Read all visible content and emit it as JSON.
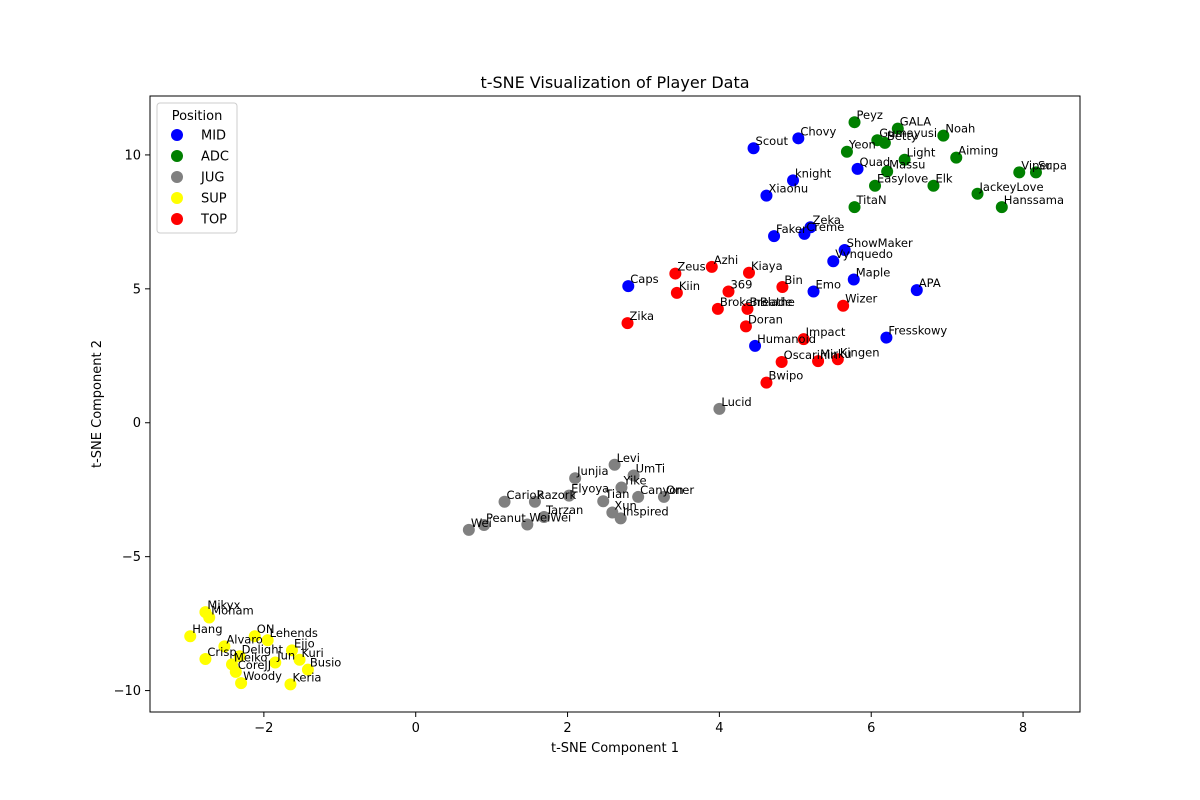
{
  "chart_data": {
    "type": "scatter",
    "title": "t-SNE Visualization of Player Data",
    "xlabel": "t-SNE Component 1",
    "ylabel": "t-SNE Component 2",
    "xlim": [
      -3.5,
      8.75
    ],
    "ylim": [
      -10.8,
      12.2
    ],
    "xticks": [
      -2,
      0,
      2,
      4,
      6,
      8
    ],
    "yticks": [
      -10,
      -5,
      0,
      5,
      10
    ],
    "xtick_labels": [
      "−2",
      "0",
      "2",
      "4",
      "6",
      "8"
    ],
    "ytick_labels": [
      "−10",
      "−5",
      "0",
      "5",
      "10"
    ],
    "grid": false,
    "legend": {
      "title": "Position",
      "placement": "top-left"
    },
    "series": [
      {
        "name": "MID",
        "color": "#0000ff",
        "points": [
          {
            "label": "Scout",
            "x": 4.45,
            "y": 10.25
          },
          {
            "label": "Chovy",
            "x": 5.04,
            "y": 10.62
          },
          {
            "label": "Quad",
            "x": 5.82,
            "y": 9.48
          },
          {
            "label": "knight",
            "x": 4.97,
            "y": 9.05
          },
          {
            "label": "Xiaohu",
            "x": 4.62,
            "y": 8.48
          },
          {
            "label": "Zeka",
            "x": 5.2,
            "y": 7.3
          },
          {
            "label": "Creme",
            "x": 5.12,
            "y": 7.05
          },
          {
            "label": "Faker",
            "x": 4.72,
            "y": 6.97
          },
          {
            "label": "ShowMaker",
            "x": 5.65,
            "y": 6.45
          },
          {
            "label": "Vynquedo",
            "x": 5.5,
            "y": 6.03
          },
          {
            "label": "Maple",
            "x": 5.77,
            "y": 5.35
          },
          {
            "label": "Caps",
            "x": 2.8,
            "y": 5.1
          },
          {
            "label": "Emo",
            "x": 5.24,
            "y": 4.9
          },
          {
            "label": "APA",
            "x": 6.6,
            "y": 4.95
          },
          {
            "label": "Fresskowy",
            "x": 6.2,
            "y": 3.18
          },
          {
            "label": "Humanoid",
            "x": 4.47,
            "y": 2.87
          }
        ]
      },
      {
        "name": "ADC",
        "color": "#008000",
        "points": [
          {
            "label": "Peyz",
            "x": 5.78,
            "y": 11.22
          },
          {
            "label": "GALA",
            "x": 6.35,
            "y": 10.98
          },
          {
            "label": "Gumayusi",
            "x": 6.08,
            "y": 10.55
          },
          {
            "label": "Betty",
            "x": 6.18,
            "y": 10.45
          },
          {
            "label": "Noah",
            "x": 6.95,
            "y": 10.72
          },
          {
            "label": "Yeon",
            "x": 5.68,
            "y": 10.12
          },
          {
            "label": "Light",
            "x": 6.44,
            "y": 9.82
          },
          {
            "label": "Aiming",
            "x": 7.12,
            "y": 9.9
          },
          {
            "label": "Massu",
            "x": 6.21,
            "y": 9.38
          },
          {
            "label": "Viper",
            "x": 7.95,
            "y": 9.35
          },
          {
            "label": "Supa",
            "x": 8.17,
            "y": 9.35
          },
          {
            "label": "Easylove",
            "x": 6.05,
            "y": 8.85
          },
          {
            "label": "Elk",
            "x": 6.82,
            "y": 8.85
          },
          {
            "label": "JackeyLove",
            "x": 7.4,
            "y": 8.55
          },
          {
            "label": "Hanssama",
            "x": 7.72,
            "y": 8.05
          },
          {
            "label": "TitaN",
            "x": 5.78,
            "y": 8.05
          }
        ]
      },
      {
        "name": "JUG",
        "color": "#808080",
        "points": [
          {
            "label": "Lucid",
            "x": 4.0,
            "y": 0.52
          },
          {
            "label": "Levi",
            "x": 2.62,
            "y": -1.57
          },
          {
            "label": "UmTi",
            "x": 2.87,
            "y": -1.97
          },
          {
            "label": "Junjia",
            "x": 2.1,
            "y": -2.07
          },
          {
            "label": "Yike",
            "x": 2.71,
            "y": -2.42
          },
          {
            "label": "Elyoya",
            "x": 2.02,
            "y": -2.72
          },
          {
            "label": "Canyon",
            "x": 2.93,
            "y": -2.77
          },
          {
            "label": "Oner",
            "x": 3.27,
            "y": -2.77
          },
          {
            "label": "Tian",
            "x": 2.47,
            "y": -2.93
          },
          {
            "label": "Cariok",
            "x": 1.17,
            "y": -2.95
          },
          {
            "label": "Razork",
            "x": 1.57,
            "y": -2.95
          },
          {
            "label": "Xun",
            "x": 2.59,
            "y": -3.35
          },
          {
            "label": "Tarzan",
            "x": 1.69,
            "y": -3.52
          },
          {
            "label": "Inspired",
            "x": 2.7,
            "y": -3.57
          },
          {
            "label": "WeiWei",
            "x": 1.47,
            "y": -3.8
          },
          {
            "label": "Peanut",
            "x": 0.9,
            "y": -3.82
          },
          {
            "label": "Wei",
            "x": 0.7,
            "y": -4.0
          }
        ]
      },
      {
        "name": "SUP",
        "color": "#ffff00",
        "points": [
          {
            "label": "Mikyx",
            "x": -2.77,
            "y": -7.07
          },
          {
            "label": "Moham",
            "x": -2.72,
            "y": -7.27
          },
          {
            "label": "Hang",
            "x": -2.97,
            "y": -7.97
          },
          {
            "label": "ON",
            "x": -2.12,
            "y": -7.97
          },
          {
            "label": "Lehends",
            "x": -1.95,
            "y": -8.12
          },
          {
            "label": "Alvaro",
            "x": -2.52,
            "y": -8.35
          },
          {
            "label": "Ejjo",
            "x": -1.63,
            "y": -8.5
          },
          {
            "label": "Delight",
            "x": -2.32,
            "y": -8.72
          },
          {
            "label": "Crisp",
            "x": -2.77,
            "y": -8.82
          },
          {
            "label": "Kuri",
            "x": -1.53,
            "y": -8.85
          },
          {
            "label": "Meiko",
            "x": -2.42,
            "y": -9.02
          },
          {
            "label": "Jun",
            "x": -1.85,
            "y": -8.95
          },
          {
            "label": "CoreJJ",
            "x": -2.37,
            "y": -9.3
          },
          {
            "label": "Busio",
            "x": -1.42,
            "y": -9.22
          },
          {
            "label": "Woody",
            "x": -2.3,
            "y": -9.72
          },
          {
            "label": "Keria",
            "x": -1.65,
            "y": -9.77
          }
        ]
      },
      {
        "name": "TOP",
        "color": "#ff0000",
        "points": [
          {
            "label": "Azhi",
            "x": 3.9,
            "y": 5.82
          },
          {
            "label": "Zeus",
            "x": 3.42,
            "y": 5.57
          },
          {
            "label": "Kiaya",
            "x": 4.39,
            "y": 5.6
          },
          {
            "label": "Bin",
            "x": 4.83,
            "y": 5.07
          },
          {
            "label": "369",
            "x": 4.12,
            "y": 4.9
          },
          {
            "label": "Kiin",
            "x": 3.44,
            "y": 4.85
          },
          {
            "label": "Wizer",
            "x": 5.63,
            "y": 4.37
          },
          {
            "label": "Breathe",
            "x": 4.37,
            "y": 4.25
          },
          {
            "label": "BrokenBlade",
            "x": 3.98,
            "y": 4.25
          },
          {
            "label": "Zika",
            "x": 2.79,
            "y": 3.72
          },
          {
            "label": "Doran",
            "x": 4.35,
            "y": 3.6
          },
          {
            "label": "Impact",
            "x": 5.11,
            "y": 3.12
          },
          {
            "label": "Kingen",
            "x": 5.56,
            "y": 2.37
          },
          {
            "label": "Oscarinin",
            "x": 4.82,
            "y": 2.27
          },
          {
            "label": "Mirku",
            "x": 5.3,
            "y": 2.3
          },
          {
            "label": "Bwipo",
            "x": 4.62,
            "y": 1.5
          }
        ]
      }
    ]
  }
}
